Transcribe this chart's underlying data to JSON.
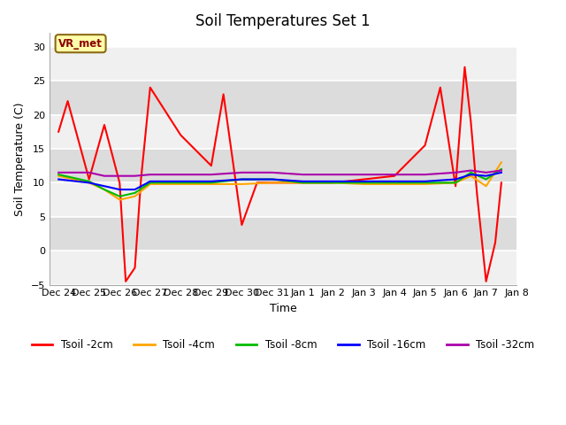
{
  "title": "Soil Temperatures Set 1",
  "xlabel": "Time",
  "ylabel": "Soil Temperature (C)",
  "ylim": [
    -5,
    32
  ],
  "yticks": [
    -5,
    0,
    5,
    10,
    15,
    20,
    25,
    30
  ],
  "fig_bg": "#ffffff",
  "plot_bg_light": "#f0f0f0",
  "plot_bg_dark": "#dcdcdc",
  "annotation_text": "VR_met",
  "annotation_color": "#8B0000",
  "annotation_bg": "#FFFFAA",
  "annotation_border": "#8B6914",
  "x_labels": [
    "Dec 24",
    "Dec 25",
    "Dec 26",
    "Dec 27",
    "Dec 28",
    "Dec 29",
    "Dec 30",
    "Dec 31",
    "Jan 1",
    "Jan 2",
    "Jan 3",
    "Jan 4",
    "Jan 5",
    "Jan 6",
    "Jan 7",
    "Jan 8"
  ],
  "t2cm_x": [
    0,
    0.3,
    1.0,
    1.5,
    2.0,
    2.2,
    2.5,
    2.7,
    3.0,
    4.0,
    5.0,
    5.4,
    6.0,
    6.5,
    7.0,
    8.0,
    9.0,
    10.0,
    11.0,
    12.0,
    12.5,
    13.0,
    13.3,
    13.5,
    13.7,
    14.0,
    14.3,
    14.5
  ],
  "t2cm_y": [
    17.5,
    22.0,
    10.5,
    18.5,
    10.0,
    -4.5,
    -2.5,
    10.5,
    24.0,
    17.0,
    12.5,
    23.0,
    3.8,
    10.0,
    10.0,
    10.0,
    10.0,
    10.5,
    11.0,
    15.5,
    24.0,
    9.5,
    27.0,
    19.0,
    8.5,
    -4.5,
    1.2,
    10.0
  ],
  "t4cm_x": [
    0,
    1.0,
    1.5,
    2.0,
    2.5,
    3.0,
    4.0,
    5.0,
    6.0,
    7.0,
    8.0,
    9.0,
    10.0,
    11.0,
    12.0,
    13.0,
    13.5,
    14.0,
    14.5
  ],
  "t4cm_y": [
    11.0,
    10.0,
    9.0,
    7.5,
    8.0,
    9.8,
    9.8,
    9.8,
    9.8,
    10.0,
    10.0,
    10.0,
    9.8,
    9.8,
    9.8,
    10.0,
    11.0,
    9.5,
    13.0
  ],
  "t8cm_x": [
    0,
    1.0,
    1.5,
    2.0,
    2.5,
    3.0,
    4.0,
    5.0,
    6.0,
    7.0,
    8.0,
    9.0,
    10.0,
    11.0,
    12.0,
    13.0,
    13.5,
    14.0,
    14.5
  ],
  "t8cm_y": [
    11.2,
    10.2,
    9.0,
    8.0,
    8.5,
    10.0,
    10.0,
    10.0,
    10.5,
    10.5,
    10.0,
    10.0,
    10.0,
    10.0,
    10.0,
    10.0,
    11.5,
    10.5,
    12.0
  ],
  "t16cm_x": [
    0,
    1.0,
    1.5,
    2.0,
    2.5,
    3.0,
    4.0,
    5.0,
    6.0,
    7.0,
    8.0,
    9.0,
    10.0,
    11.0,
    12.0,
    13.0,
    13.5,
    14.0,
    14.5
  ],
  "t16cm_y": [
    10.5,
    10.0,
    9.5,
    9.0,
    9.0,
    10.2,
    10.2,
    10.2,
    10.5,
    10.5,
    10.2,
    10.2,
    10.2,
    10.2,
    10.2,
    10.5,
    11.2,
    11.0,
    11.5
  ],
  "t32cm_x": [
    0,
    1.0,
    1.5,
    2.0,
    2.5,
    3.0,
    4.0,
    5.0,
    6.0,
    7.0,
    8.0,
    9.0,
    10.0,
    11.0,
    12.0,
    13.0,
    13.5,
    14.0,
    14.5
  ],
  "t32cm_y": [
    11.5,
    11.5,
    11.0,
    11.0,
    11.0,
    11.2,
    11.2,
    11.2,
    11.5,
    11.5,
    11.2,
    11.2,
    11.2,
    11.2,
    11.2,
    11.5,
    11.8,
    11.5,
    11.8
  ],
  "colors": {
    "t2cm": "#FF0000",
    "t4cm": "#FFA500",
    "t8cm": "#00BB00",
    "t16cm": "#0000FF",
    "t32cm": "#AA00AA"
  }
}
